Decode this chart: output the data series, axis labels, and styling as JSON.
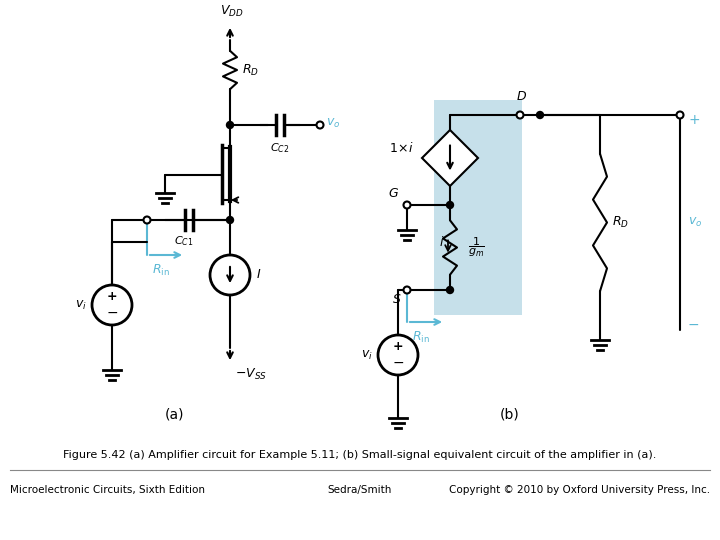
{
  "fig_width": 7.2,
  "fig_height": 5.4,
  "dpi": 100,
  "bg_color": "#ffffff",
  "cyan_color": "#5BB8D4",
  "light_blue_bg": "#A8D0E0",
  "caption": "Figure 5.42 (a) Amplifier circuit for Example 5.11; (b) Small-signal equivalent circuit of the amplifier in (a).",
  "footer_left": "Microelectronic Circuits, Sixth Edition",
  "footer_center": "Sedra/Smith",
  "footer_right": "Copyright © 2010 by Oxford University Press, Inc.",
  "label_a": "(a)",
  "label_b": "(b)"
}
